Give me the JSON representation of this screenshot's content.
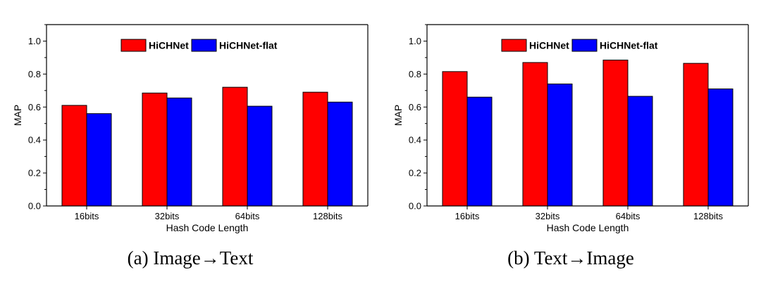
{
  "chart_data": [
    {
      "type": "bar",
      "caption": "(a)  Image→Text",
      "xlabel": "Hash Code Length",
      "ylabel": "MAP",
      "ylim": [
        0,
        1.1
      ],
      "yticks": [
        "0.0",
        "0.2",
        "0.4",
        "0.6",
        "0.8",
        "1.0"
      ],
      "categories": [
        "16bits",
        "32bits",
        "64bits",
        "128bits"
      ],
      "series": [
        {
          "name": "HiCHNet",
          "color": "#ff0000",
          "values": [
            0.61,
            0.685,
            0.72,
            0.69
          ]
        },
        {
          "name": "HiCHNet-flat",
          "color": "#0000ff",
          "values": [
            0.56,
            0.655,
            0.605,
            0.63
          ]
        }
      ],
      "legend": "top-center",
      "grid": false
    },
    {
      "type": "bar",
      "caption": "(b)  Text→Image",
      "xlabel": "Hash Code Length",
      "ylabel": "MAP",
      "ylim": [
        0,
        1.1
      ],
      "yticks": [
        "0.0",
        "0.2",
        "0.4",
        "0.6",
        "0.8",
        "1.0"
      ],
      "categories": [
        "16bits",
        "32bits",
        "64bits",
        "128bits"
      ],
      "series": [
        {
          "name": "HiCHNet",
          "color": "#ff0000",
          "values": [
            0.815,
            0.87,
            0.885,
            0.865
          ]
        },
        {
          "name": "HiCHNet-flat",
          "color": "#0000ff",
          "values": [
            0.66,
            0.74,
            0.665,
            0.71
          ]
        }
      ],
      "legend": "top-center",
      "grid": false
    }
  ]
}
